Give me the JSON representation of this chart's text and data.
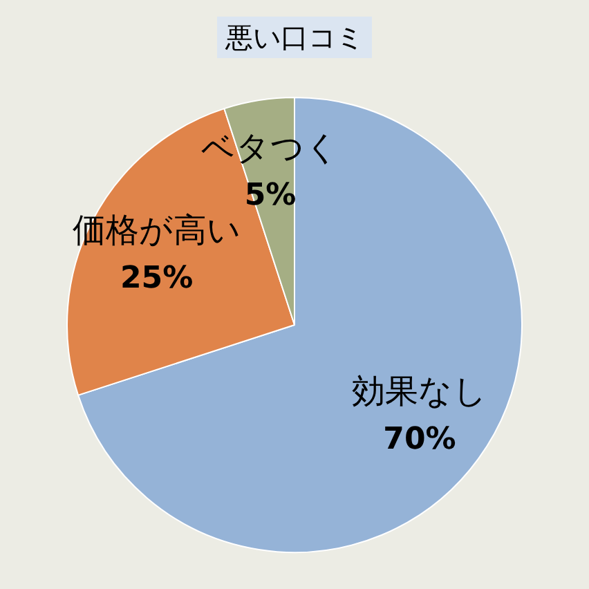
{
  "chart_data": {
    "type": "pie",
    "title": "悪い口コミ",
    "categories": [
      "効果なし",
      "価格が高い",
      "ベタつく"
    ],
    "values": [
      70,
      25,
      5
    ],
    "colors": [
      "#95b3d7",
      "#e0844a",
      "#a5ae84"
    ],
    "value_labels": [
      "70%",
      "25%",
      "5%"
    ]
  }
}
